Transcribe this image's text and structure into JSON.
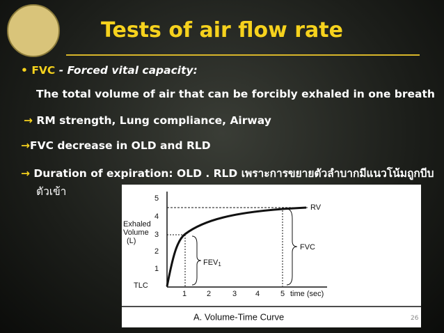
{
  "header": {
    "title": "Tests of air flow rate"
  },
  "items": [
    {
      "bullet": "•",
      "term": "FVC",
      "text": "- Forced vital capacity:"
    },
    {
      "text": "The total volume of air that can be forcibly exhaled in one breath"
    },
    {
      "arrow": "→",
      "text": "RM strength, Lung compliance, Airway"
    },
    {
      "arrow": "→",
      "text": "FVC decrease in OLD and RLD"
    },
    {
      "arrow": "→",
      "text": "Duration of expiration: OLD . RLD เพราะการขยายตัวลำบากมีแนวโน้มถูกบีบ",
      "continuation": "ตัวเข้า"
    }
  ],
  "figure": {
    "y_axis_label": [
      "Exhaled",
      "Volume",
      "(L)"
    ],
    "y_ticks": [
      "5",
      "4",
      "3",
      "2",
      "1",
      "TLC"
    ],
    "x_ticks": [
      "1",
      "2",
      "3",
      "4",
      "5"
    ],
    "x_axis_label": "time (sec)",
    "labels": {
      "rv": "RV",
      "fvc": "FVC",
      "fev": "FEV",
      "fev_sub": "1"
    },
    "caption": "A. Volume-Time Curve"
  },
  "page_number": "26"
}
